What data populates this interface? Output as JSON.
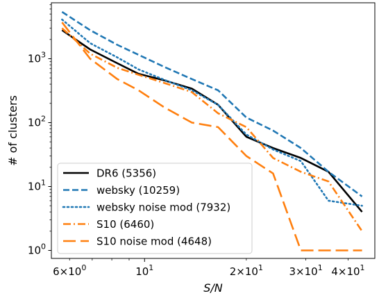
{
  "chart_data": {
    "type": "line",
    "xlabel": "S/N",
    "ylabel": "# of clusters",
    "x_scale": "log",
    "y_scale": "log",
    "xlim": [
      5.3,
      48
    ],
    "ylim": [
      0.75,
      7500
    ],
    "x_major_ticks": [
      {
        "value": 10,
        "base": "10",
        "exp": "1"
      }
    ],
    "x_minor_ticks": [
      {
        "value": 6,
        "mant": "6",
        "base": "10",
        "exp": "0"
      },
      {
        "value": 20,
        "mant": "2",
        "base": "10",
        "exp": "1"
      },
      {
        "value": 30,
        "mant": "3",
        "base": "10",
        "exp": "1"
      },
      {
        "value": 40,
        "mant": "4",
        "base": "10",
        "exp": "1"
      }
    ],
    "y_major_ticks": [
      {
        "value": 1,
        "base": "10",
        "exp": "0"
      },
      {
        "value": 10,
        "base": "10",
        "exp": "1"
      },
      {
        "value": 100,
        "base": "10",
        "exp": "2"
      },
      {
        "value": 1000,
        "base": "10",
        "exp": "3"
      }
    ],
    "grid": false,
    "legend_position": "lower-left",
    "series": [
      {
        "name": "DR6 (5356)",
        "color": "#000000",
        "style": "solid",
        "x": [
          5.7,
          6.9,
          8.3,
          9.6,
          11.4,
          13.8,
          16.5,
          20,
          24,
          29,
          35,
          44
        ],
        "y": [
          2800,
          1400,
          850,
          580,
          460,
          340,
          190,
          60,
          40,
          28,
          17,
          4
        ]
      },
      {
        "name": "websky (10259)",
        "color": "#1f77b4",
        "style": "dashed",
        "x": [
          5.7,
          6.9,
          8.3,
          9.6,
          11.4,
          13.8,
          16.5,
          20,
          24,
          29,
          35,
          44
        ],
        "y": [
          5400,
          2800,
          1650,
          1150,
          750,
          480,
          320,
          120,
          75,
          40,
          17,
          7
        ]
      },
      {
        "name": "websky noise mod (7932)",
        "color": "#1f77b4",
        "style": "dotted",
        "x": [
          5.7,
          6.9,
          8.3,
          9.6,
          11.4,
          13.8,
          16.5,
          20,
          24,
          29,
          35,
          44
        ],
        "y": [
          4100,
          1750,
          1050,
          680,
          470,
          320,
          190,
          65,
          38,
          25,
          6,
          5
        ]
      },
      {
        "name": "S10 (6460)",
        "color": "#ff7f0e",
        "style": "dashdot",
        "x": [
          5.7,
          6.9,
          8.3,
          9.6,
          11.4,
          13.8,
          16.5,
          20,
          24,
          29,
          35,
          44
        ],
        "y": [
          3000,
          1200,
          720,
          560,
          420,
          300,
          140,
          85,
          28,
          17,
          12,
          2
        ]
      },
      {
        "name": "S10 noise mod (4648)",
        "color": "#ff7f0e",
        "style": "dashed-long",
        "x": [
          5.7,
          6.9,
          8.3,
          9.6,
          11.4,
          13.8,
          16.5,
          20,
          24,
          29,
          35,
          44
        ],
        "y": [
          3700,
          1000,
          480,
          320,
          175,
          100,
          85,
          30,
          16,
          1,
          1,
          1
        ]
      }
    ]
  }
}
